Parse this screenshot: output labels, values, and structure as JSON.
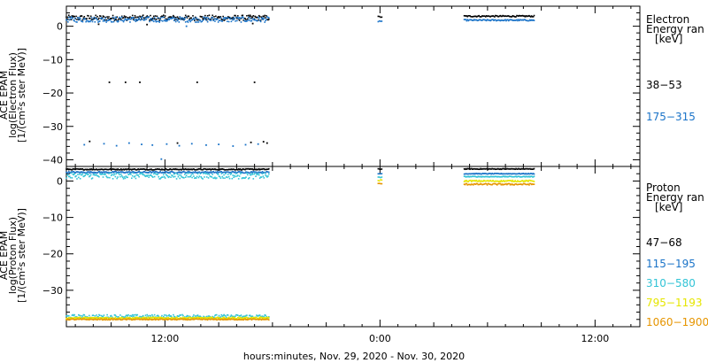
{
  "xlabel": "hours:minutes, Nov. 29, 2020 - Nov. 30, 2020",
  "x_ticks": [
    {
      "t": 12,
      "label": "12:00"
    },
    {
      "t": 24,
      "label": "0:00"
    },
    {
      "t": 36,
      "label": "12:00"
    }
  ],
  "chart_data": [
    {
      "type": "scatter",
      "panel": "electron",
      "ylabel_lines": [
        "ACE EPAM",
        "log(Electron Flux)",
        "[1/(cm²s ster MeV)]"
      ],
      "ylim": [
        -42,
        6
      ],
      "yticks": [
        0,
        -10,
        -20,
        -30,
        -40
      ],
      "xlim": [
        6.5,
        38.5
      ],
      "x_units": "hours since 2020-11-29 00:00",
      "legend": {
        "title_lines": [
          "Electron",
          "Energy ran",
          "[keV]"
        ],
        "placement": "right"
      },
      "series": [
        {
          "name": "38-53",
          "color": "#000000",
          "segments": [
            {
              "x_start": 6.5,
              "x_end": 17.8,
              "y": 2.5,
              "jitter": 0.8
            },
            {
              "x_start": 23.9,
              "x_end": 24.1,
              "y": 2.8,
              "jitter": 0.2
            },
            {
              "x_start": 28.7,
              "x_end": 32.6,
              "y": 3.0,
              "jitter": 0.2
            }
          ],
          "outliers": [
            [
              7.8,
              -34.5
            ],
            [
              8.9,
              -16.8
            ],
            [
              9.8,
              -16.8
            ],
            [
              10.6,
              -16.8
            ],
            [
              13.8,
              -16.8
            ],
            [
              17.0,
              -16.8
            ],
            [
              12.7,
              -35.0
            ],
            [
              16.8,
              -34.8
            ],
            [
              17.5,
              -34.6
            ],
            [
              17.7,
              -35.0
            ],
            [
              16.9,
              0.8
            ],
            [
              11.0,
              0.5
            ],
            [
              8.3,
              0.6
            ]
          ]
        },
        {
          "name": "175-315",
          "color": "#1a73c8",
          "segments": [
            {
              "x_start": 6.5,
              "x_end": 17.8,
              "y": 2.0,
              "jitter": 0.8
            },
            {
              "x_start": 23.9,
              "x_end": 24.1,
              "y": 1.5,
              "jitter": 0.2
            },
            {
              "x_start": 28.7,
              "x_end": 32.6,
              "y": 1.8,
              "jitter": 0.2
            }
          ],
          "outliers": [
            [
              7.5,
              -35.5
            ],
            [
              8.6,
              -35.2
            ],
            [
              9.3,
              -35.8
            ],
            [
              10.0,
              -35.0
            ],
            [
              10.7,
              -35.4
            ],
            [
              11.3,
              -35.6
            ],
            [
              12.1,
              -35.3
            ],
            [
              12.8,
              -35.8
            ],
            [
              13.5,
              -35.2
            ],
            [
              14.3,
              -35.6
            ],
            [
              15.0,
              -35.4
            ],
            [
              15.8,
              -35.9
            ],
            [
              16.5,
              -35.5
            ],
            [
              17.2,
              -35.3
            ],
            [
              11.8,
              -39.8
            ],
            [
              13.2,
              0.0
            ]
          ]
        }
      ]
    },
    {
      "type": "scatter",
      "panel": "proton",
      "ylabel_lines": [
        "ACE EPAM",
        "log(Proton Flux)",
        "[1/(cm²s ster MeV)]"
      ],
      "ylim": [
        -40,
        4
      ],
      "yticks": [
        0,
        -10,
        -20,
        -30
      ],
      "xlim": [
        6.5,
        38.5
      ],
      "x_units": "hours since 2020-11-29 00:00",
      "legend": {
        "title_lines": [
          "Proton",
          "Energy ran",
          "[keV]"
        ],
        "placement": "right"
      },
      "series": [
        {
          "name": "47-68",
          "color": "#000000",
          "segments": [
            {
              "x_start": 6.5,
              "x_end": 17.8,
              "y": 3.2,
              "jitter": 0.15
            },
            {
              "x_start": 23.9,
              "x_end": 24.1,
              "y": 3.3,
              "jitter": 0.1
            },
            {
              "x_start": 28.7,
              "x_end": 32.6,
              "y": 3.3,
              "jitter": 0.1
            }
          ]
        },
        {
          "name": "115-195",
          "color": "#1a73c8",
          "segments": [
            {
              "x_start": 6.5,
              "x_end": 17.8,
              "y": 2.4,
              "jitter": 0.2
            },
            {
              "x_start": 23.9,
              "x_end": 24.1,
              "y": 2.0,
              "jitter": 0.1
            },
            {
              "x_start": 28.7,
              "x_end": 32.6,
              "y": 2.0,
              "jitter": 0.1
            }
          ]
        },
        {
          "name": "310-580",
          "color": "#33c4d6",
          "segments": [
            {
              "x_start": 6.5,
              "x_end": 17.8,
              "y": 1.4,
              "jitter": 0.8
            },
            {
              "x_start": 6.5,
              "x_end": 17.8,
              "y": -37.2,
              "jitter": 0.5
            },
            {
              "x_start": 23.9,
              "x_end": 24.1,
              "y": 1.0,
              "jitter": 0.1
            },
            {
              "x_start": 28.7,
              "x_end": 32.6,
              "y": 1.2,
              "jitter": 0.1
            }
          ]
        },
        {
          "name": "795-1193",
          "color": "#e6e600",
          "segments": [
            {
              "x_start": 6.5,
              "x_end": 17.8,
              "y": -37.6,
              "jitter": 0.2
            },
            {
              "x_start": 23.9,
              "x_end": 24.1,
              "y": 0.2,
              "jitter": 0.2
            },
            {
              "x_start": 28.7,
              "x_end": 32.6,
              "y": 0.0,
              "jitter": 0.2
            }
          ]
        },
        {
          "name": "1060-1900",
          "color": "#e69500",
          "segments": [
            {
              "x_start": 6.5,
              "x_end": 17.8,
              "y": -38.0,
              "jitter": 0.15
            },
            {
              "x_start": 23.9,
              "x_end": 24.1,
              "y": -0.8,
              "jitter": 0.2
            },
            {
              "x_start": 28.7,
              "x_end": 32.6,
              "y": -0.9,
              "jitter": 0.2
            }
          ]
        }
      ]
    }
  ]
}
